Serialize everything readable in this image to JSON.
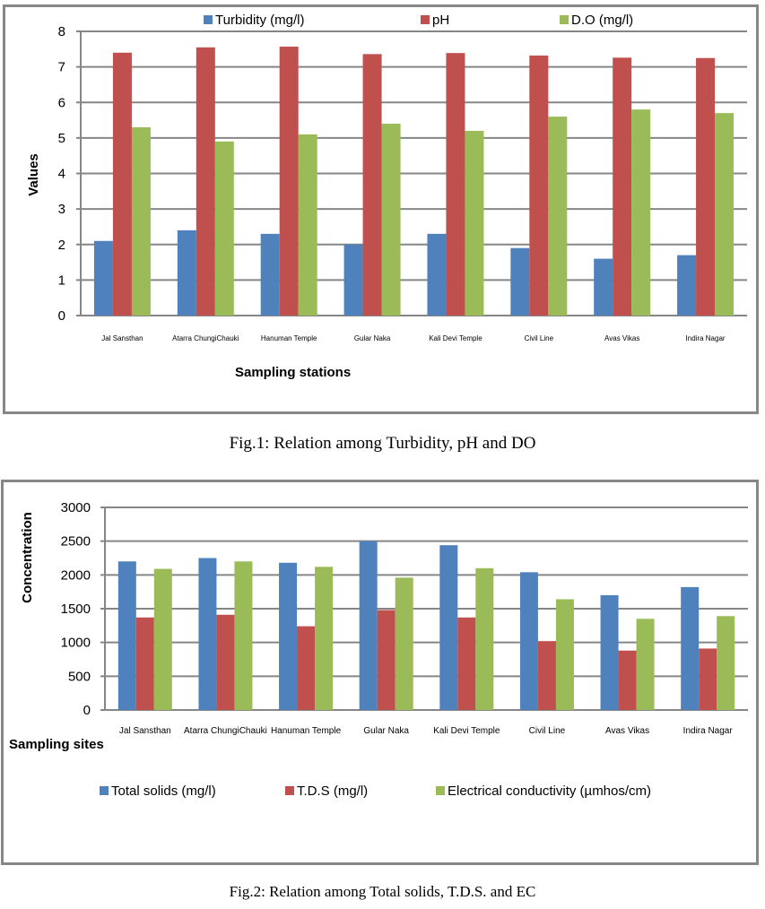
{
  "chart_data": [
    {
      "type": "bar",
      "title": "",
      "xlabel": "Sampling stations",
      "ylabel": "Values",
      "ylim": [
        0,
        8
      ],
      "yticks": [
        0,
        1,
        2,
        3,
        4,
        5,
        6,
        7,
        8
      ],
      "grid": true,
      "legend": "top",
      "categories": [
        "Jal Sansthan",
        "Atarra ChungiChauki",
        "Hanuman Temple",
        "Gular Naka",
        "Kali Devi Temple",
        "Civil Line",
        "Avas Vikas",
        "Indira  Nagar"
      ],
      "series": [
        {
          "name": "Turbidity (mg/l)",
          "color": "#4f81bd",
          "values": [
            2.1,
            2.4,
            2.3,
            2.0,
            2.3,
            1.9,
            1.6,
            1.7
          ]
        },
        {
          "name": "pH",
          "color": "#c0504d",
          "values": [
            7.4,
            7.55,
            7.57,
            7.36,
            7.39,
            7.32,
            7.26,
            7.25
          ]
        },
        {
          "name": "D.O (mg/l)",
          "color": "#9bbb59",
          "values": [
            5.3,
            4.9,
            5.1,
            5.4,
            5.2,
            5.6,
            5.8,
            5.7
          ]
        }
      ],
      "caption": "Fig.1: Relation among Turbidity, pH and DO"
    },
    {
      "type": "bar",
      "title": "",
      "xlabel": "Sampling sites",
      "ylabel": "Concentration",
      "ylim": [
        0,
        3000
      ],
      "yticks": [
        0,
        500,
        1000,
        1500,
        2000,
        2500,
        3000
      ],
      "grid": true,
      "legend": "bottom",
      "categories": [
        "Jal Sansthan",
        "Atarra ChungiChauki",
        "Hanuman Temple",
        "Gular Naka",
        "Kali Devi Temple",
        "Civil Line",
        "Avas Vikas",
        "Indira  Nagar"
      ],
      "series": [
        {
          "name": "Total solids (mg/l)",
          "color": "#4f81bd",
          "values": [
            2200,
            2250,
            2180,
            2500,
            2440,
            2040,
            1700,
            1820
          ]
        },
        {
          "name": "T.D.S (mg/l)",
          "color": "#c0504d",
          "values": [
            1370,
            1410,
            1240,
            1480,
            1370,
            1020,
            880,
            910
          ]
        },
        {
          "name": "Electrical conductivity (µmhos/cm)",
          "color": "#9bbb59",
          "values": [
            2090,
            2200,
            2120,
            1960,
            2100,
            1640,
            1350,
            1390
          ]
        }
      ],
      "caption": "Fig.2: Relation among Total solids, T.D.S. and EC"
    }
  ]
}
